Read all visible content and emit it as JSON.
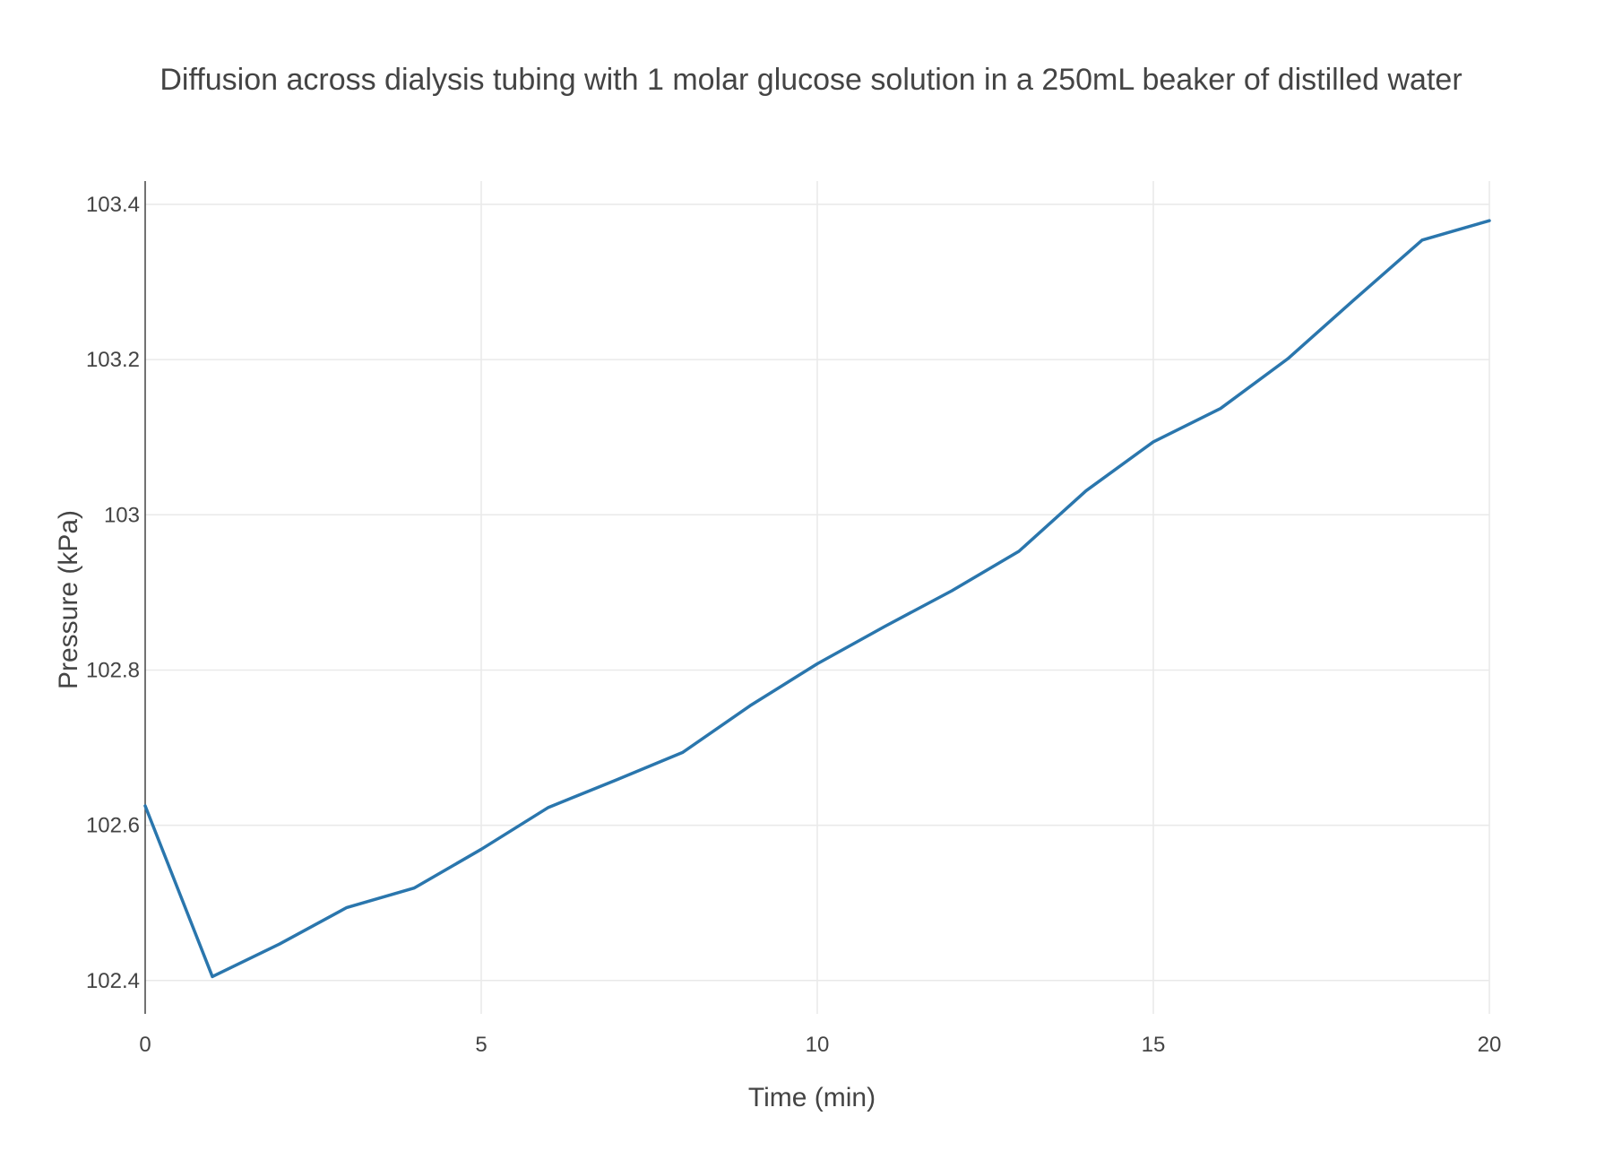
{
  "chart_data": {
    "type": "line",
    "title": "Diffusion across dialysis tubing with 1 molar glucose solution in a 250mL beaker of distilled water",
    "xlabel": "Time (min)",
    "ylabel": "Pressure (kPa)",
    "xlim": [
      0,
      20
    ],
    "ylim": [
      102.357,
      103.43
    ],
    "x_ticks": [
      0,
      5,
      10,
      15,
      20
    ],
    "x_tick_labels": [
      "0",
      "5",
      "10",
      "15",
      "20"
    ],
    "y_ticks": [
      102.4,
      102.6,
      102.8,
      103.0,
      103.2,
      103.4
    ],
    "y_tick_labels": [
      "102.4",
      "102.6",
      "102.8",
      "103",
      "103.2",
      "103.4"
    ],
    "grid": true,
    "legend": "none",
    "series": [
      {
        "color": "#2a76ad",
        "x": [
          0,
          1,
          2,
          3,
          4,
          5,
          6,
          7,
          8,
          9,
          10,
          11,
          12,
          13,
          14,
          15,
          16,
          17,
          18,
          19,
          20
        ],
        "y": [
          102.625,
          102.405,
          102.447,
          102.494,
          102.519,
          102.569,
          102.623,
          102.658,
          102.694,
          102.754,
          102.808,
          102.856,
          102.902,
          102.953,
          103.031,
          103.094,
          103.137,
          103.201,
          103.278,
          103.354,
          103.379
        ]
      }
    ]
  }
}
